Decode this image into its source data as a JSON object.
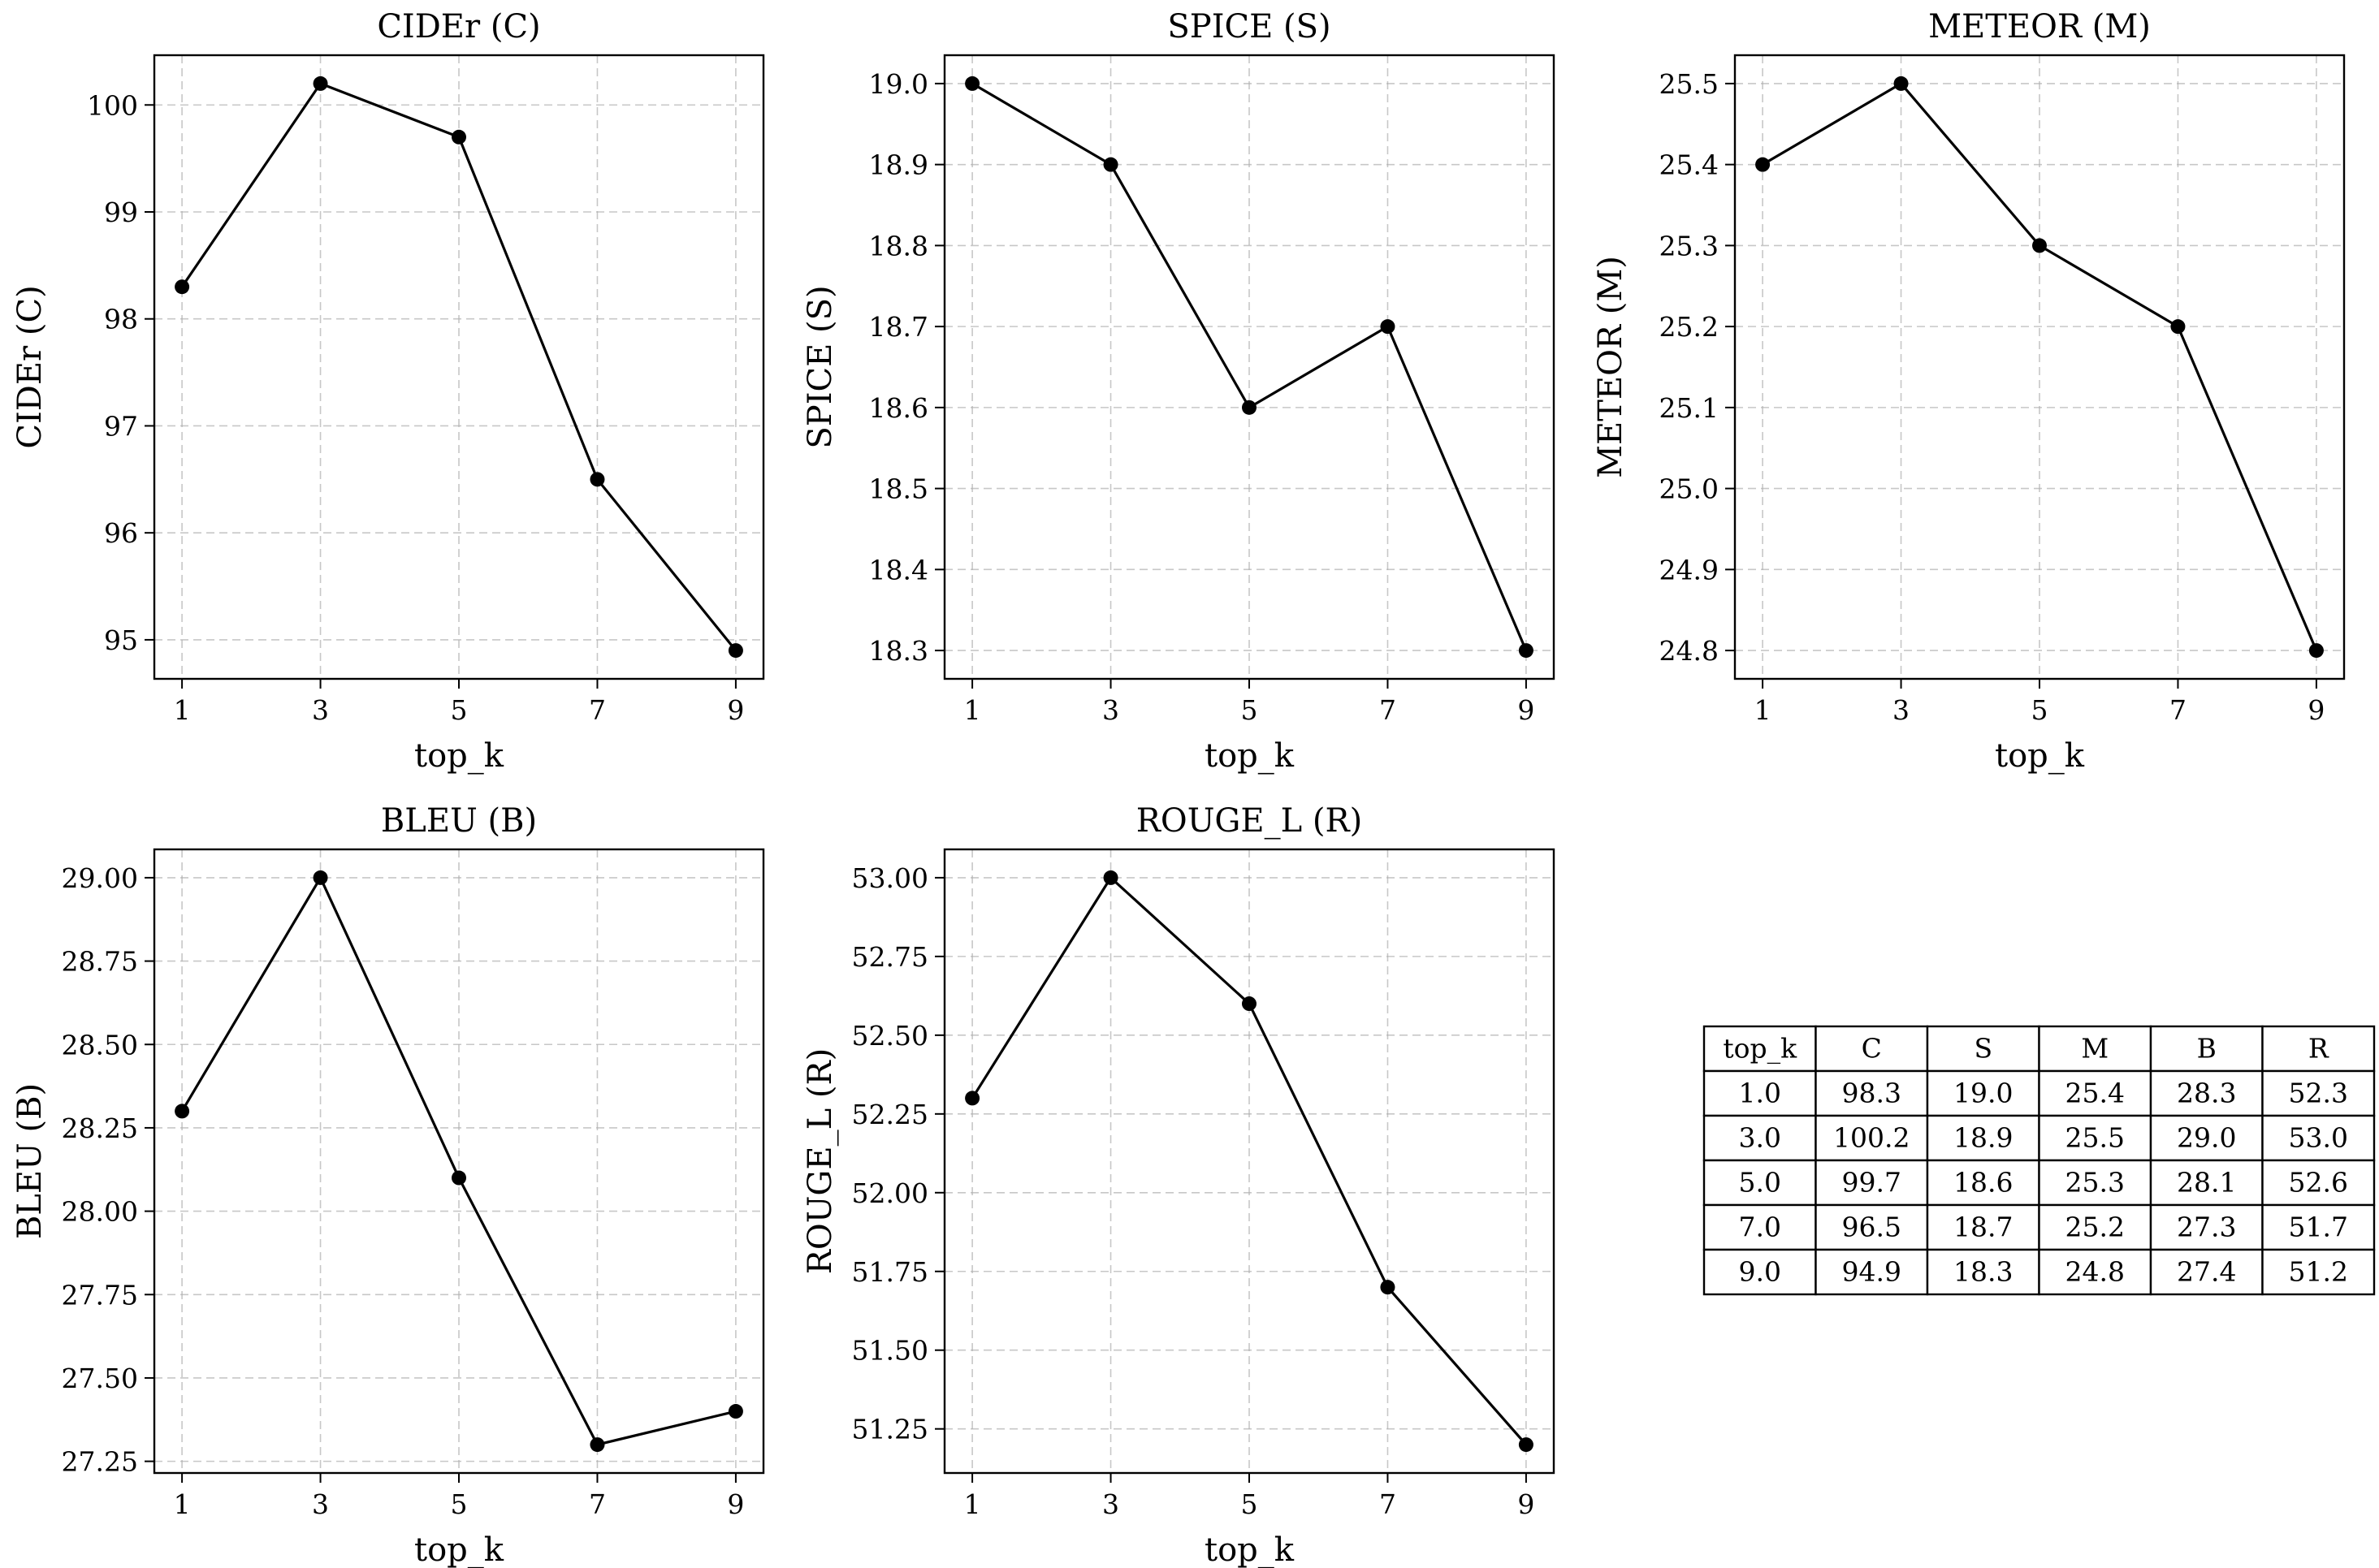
{
  "chart_data": [
    {
      "type": "line",
      "title": "CIDEr (C)",
      "xlabel": "top_k",
      "ylabel": "CIDEr (C)",
      "x": [
        1,
        3,
        5,
        7,
        9
      ],
      "values": [
        98.3,
        100.2,
        99.7,
        96.5,
        94.9
      ],
      "xticks": [
        "1",
        "3",
        "5",
        "7",
        "9"
      ],
      "yticks": [
        95,
        96,
        97,
        98,
        99,
        100
      ],
      "ytick_labels": [
        "95",
        "96",
        "97",
        "98",
        "99",
        "100"
      ],
      "xlim": [
        0.6,
        9.4
      ],
      "ylim": [
        94.635,
        100.465
      ],
      "grid": true,
      "color": "#000000"
    },
    {
      "type": "line",
      "title": "SPICE (S)",
      "xlabel": "top_k",
      "ylabel": "SPICE (S)",
      "x": [
        1,
        3,
        5,
        7,
        9
      ],
      "values": [
        19.0,
        18.9,
        18.6,
        18.7,
        18.3
      ],
      "xticks": [
        "1",
        "3",
        "5",
        "7",
        "9"
      ],
      "yticks": [
        18.3,
        18.4,
        18.5,
        18.6,
        18.7,
        18.8,
        18.9,
        19.0
      ],
      "ytick_labels": [
        "18.3",
        "18.4",
        "18.5",
        "18.6",
        "18.7",
        "18.8",
        "18.9",
        "19.0"
      ],
      "xlim": [
        0.6,
        9.4
      ],
      "ylim": [
        18.265,
        19.035
      ],
      "grid": true,
      "color": "#000000"
    },
    {
      "type": "line",
      "title": "METEOR (M)",
      "xlabel": "top_k",
      "ylabel": "METEOR (M)",
      "x": [
        1,
        3,
        5,
        7,
        9
      ],
      "values": [
        25.4,
        25.5,
        25.3,
        25.2,
        24.8
      ],
      "xticks": [
        "1",
        "3",
        "5",
        "7",
        "9"
      ],
      "yticks": [
        24.8,
        24.9,
        25.0,
        25.1,
        25.2,
        25.3,
        25.4,
        25.5
      ],
      "ytick_labels": [
        "24.8",
        "24.9",
        "25.0",
        "25.1",
        "25.2",
        "25.3",
        "25.4",
        "25.5"
      ],
      "xlim": [
        0.6,
        9.4
      ],
      "ylim": [
        24.765,
        25.535
      ],
      "grid": true,
      "color": "#000000"
    },
    {
      "type": "line",
      "title": "BLEU (B)",
      "xlabel": "top_k",
      "ylabel": "BLEU (B)",
      "x": [
        1,
        3,
        5,
        7,
        9
      ],
      "values": [
        28.3,
        29.0,
        28.1,
        27.3,
        27.4
      ],
      "xticks": [
        "1",
        "3",
        "5",
        "7",
        "9"
      ],
      "yticks": [
        27.25,
        27.5,
        27.75,
        28.0,
        28.25,
        28.5,
        28.75,
        29.0
      ],
      "ytick_labels": [
        "27.25",
        "27.50",
        "27.75",
        "28.00",
        "28.25",
        "28.50",
        "28.75",
        "29.00"
      ],
      "xlim": [
        0.6,
        9.4
      ],
      "ylim": [
        27.215,
        29.085
      ],
      "grid": true,
      "color": "#000000"
    },
    {
      "type": "line",
      "title": "ROUGE_L (R)",
      "xlabel": "top_k",
      "ylabel": "ROUGE_L (R)",
      "x": [
        1,
        3,
        5,
        7,
        9
      ],
      "values": [
        52.3,
        53.0,
        52.6,
        51.7,
        51.2
      ],
      "xticks": [
        "1",
        "3",
        "5",
        "7",
        "9"
      ],
      "yticks": [
        51.25,
        51.5,
        51.75,
        52.0,
        52.25,
        52.5,
        52.75,
        53.0
      ],
      "ytick_labels": [
        "51.25",
        "51.50",
        "51.75",
        "52.00",
        "52.25",
        "52.50",
        "52.75",
        "53.00"
      ],
      "xlim": [
        0.6,
        9.4
      ],
      "ylim": [
        51.11,
        53.09
      ],
      "grid": true,
      "color": "#000000"
    },
    {
      "type": "table",
      "columns": [
        "top_k",
        "C",
        "S",
        "M",
        "B",
        "R"
      ],
      "rows": [
        [
          "1.0",
          "98.3",
          "19.0",
          "25.4",
          "28.3",
          "52.3"
        ],
        [
          "3.0",
          "100.2",
          "18.9",
          "25.5",
          "29.0",
          "53.0"
        ],
        [
          "5.0",
          "99.7",
          "18.6",
          "25.3",
          "28.1",
          "52.6"
        ],
        [
          "7.0",
          "96.5",
          "18.7",
          "25.2",
          "27.3",
          "51.7"
        ],
        [
          "9.0",
          "94.9",
          "18.3",
          "24.8",
          "27.4",
          "51.2"
        ]
      ]
    }
  ]
}
